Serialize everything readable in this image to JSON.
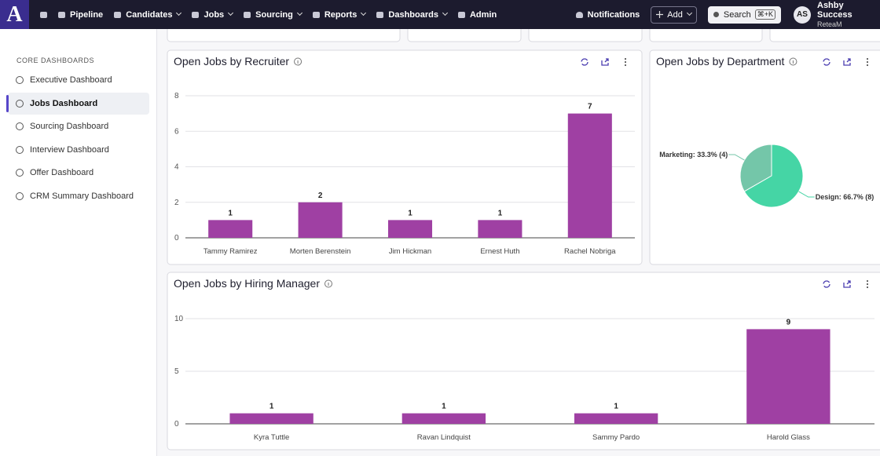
{
  "nav": {
    "logo": "A",
    "items": [
      "Pipeline",
      "Candidates",
      "Jobs",
      "Sourcing",
      "Reports",
      "Dashboards",
      "Admin"
    ],
    "dropdowns": [
      false,
      true,
      true,
      true,
      true,
      true,
      false
    ],
    "notifications": "Notifications",
    "add": "Add",
    "search": "Search",
    "shortcut": "⌘+K",
    "avatar": "AS",
    "user": "Ashby Success",
    "org": "ReteaM"
  },
  "sidebar": {
    "heading": "CORE DASHBOARDS",
    "items": [
      "Executive Dashboard",
      "Jobs Dashboard",
      "Sourcing Dashboard",
      "Interview Dashboard",
      "Offer Dashboard",
      "CRM Summary Dashboard"
    ],
    "active": 1
  },
  "chart_data": [
    {
      "type": "bar",
      "title": "Open Jobs by Recruiter",
      "categories": [
        "Tammy Ramirez",
        "Morten Berenstein",
        "Jim Hickman",
        "Ernest Huth",
        "Rachel Nobriga"
      ],
      "values": [
        1,
        2,
        1,
        1,
        7
      ],
      "color": "#9f40a3",
      "ylim": [
        0,
        8
      ],
      "yticks": [
        0,
        2,
        4,
        6,
        8
      ],
      "grid": true
    },
    {
      "type": "pie",
      "title": "Open Jobs by Department",
      "categories": [
        "Marketing",
        "Design"
      ],
      "values": [
        33.3,
        66.7
      ],
      "value_labels": [
        "Marketing: 33.3% (4)",
        "Design: 66.7% (8)"
      ],
      "colors": [
        "#74c6a9",
        "#45d5a5"
      ]
    },
    {
      "type": "bar",
      "title": "Open Jobs by Hiring Manager",
      "categories": [
        "Kyra Tuttle",
        "Ravan Lindquist",
        "Sammy Pardo",
        "Harold Glass"
      ],
      "values": [
        1,
        1,
        1,
        9
      ],
      "color": "#9f40a3",
      "ylim": [
        0,
        10
      ],
      "yticks": [
        0,
        5,
        10
      ],
      "grid": true
    }
  ]
}
